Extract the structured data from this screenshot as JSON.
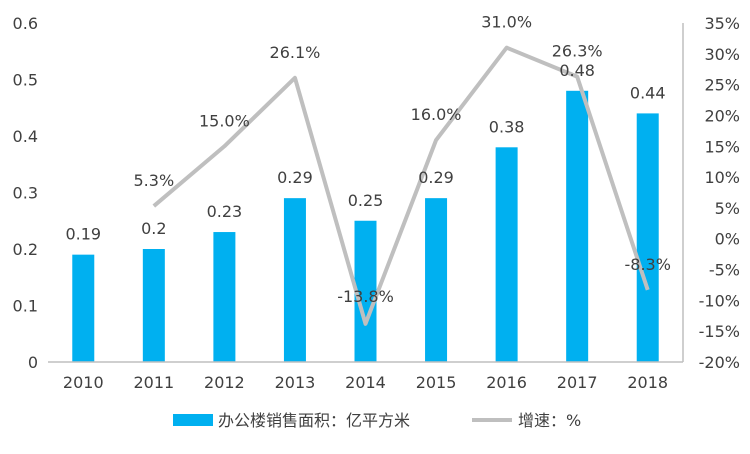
{
  "chart_data": {
    "type": "bar",
    "categories": [
      "2010",
      "2011",
      "2012",
      "2013",
      "2014",
      "2015",
      "2016",
      "2017",
      "2018"
    ],
    "series": [
      {
        "name": "办公楼销售面积：亿平方米",
        "kind": "bar",
        "axis": "left",
        "values": [
          0.19,
          0.2,
          0.23,
          0.29,
          0.25,
          0.29,
          0.38,
          0.48,
          0.44
        ],
        "labels": [
          "0.19",
          "0.2",
          "0.23",
          "0.29",
          "0.25",
          "0.29",
          "0.38",
          "0.48",
          "0.44"
        ]
      },
      {
        "name": "增速：%",
        "kind": "line",
        "axis": "right",
        "values": [
          null,
          5.3,
          15.0,
          26.1,
          -13.8,
          16.0,
          31.0,
          26.3,
          -8.3
        ],
        "labels": [
          "",
          "5.3%",
          "15.0%",
          "26.1%",
          "-13.8%",
          "16.0%",
          "31.0%",
          "26.3%",
          "-8.3%"
        ]
      }
    ],
    "left_axis": {
      "ylim": [
        0,
        0.6
      ],
      "ticks": [
        0,
        0.1,
        0.2,
        0.3,
        0.4,
        0.5,
        0.6
      ],
      "tick_labels": [
        "0",
        "0.1",
        "0.2",
        "0.3",
        "0.4",
        "0.5",
        "0.6"
      ]
    },
    "right_axis": {
      "ylim": [
        -20,
        35
      ],
      "ticks": [
        -20,
        -15,
        -10,
        -5,
        0,
        5,
        10,
        15,
        20,
        25,
        30,
        35
      ],
      "tick_labels": [
        "-20%",
        "-15%",
        "-10%",
        "-5%",
        "0%",
        "5%",
        "10%",
        "15%",
        "20%",
        "25%",
        "30%",
        "35%"
      ]
    },
    "grid": false,
    "legend_position": "bottom",
    "colors": {
      "bar": "#00b0f0",
      "line": "#bfbfbf",
      "axis": "#bfbfbf",
      "text": "#404040"
    }
  }
}
